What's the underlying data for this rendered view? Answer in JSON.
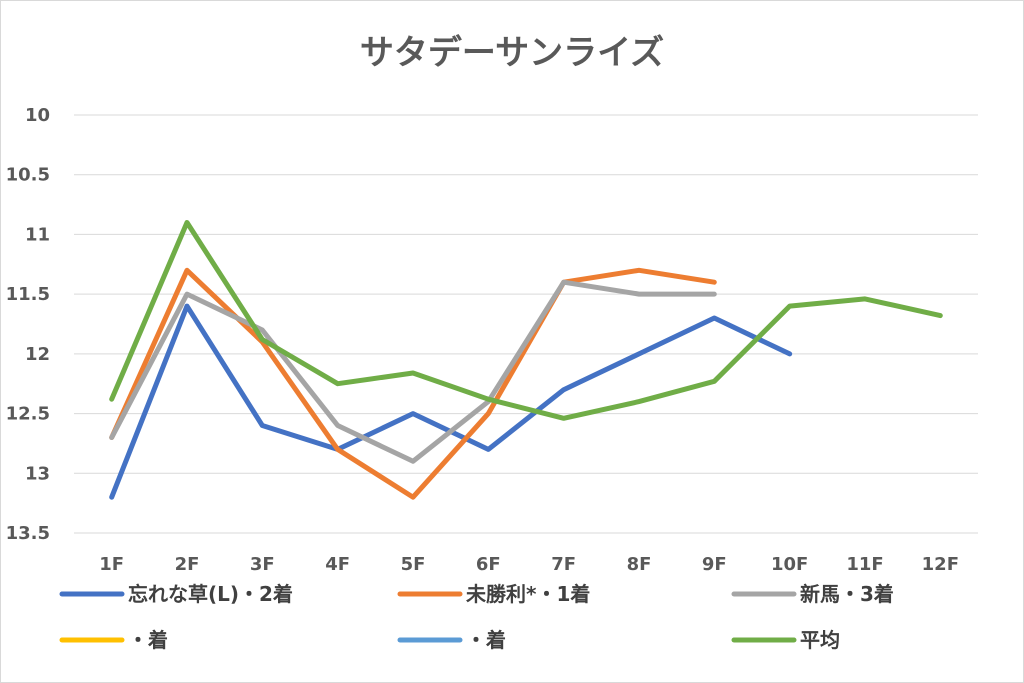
{
  "chart_data": {
    "type": "line",
    "title": "サタデーサンライズ",
    "categories": [
      "1F",
      "2F",
      "3F",
      "4F",
      "5F",
      "6F",
      "7F",
      "8F",
      "9F",
      "10F",
      "11F",
      "12F"
    ],
    "y_axis": {
      "reversed": true,
      "ylim": [
        10,
        13.5
      ],
      "ticks": [
        "10",
        "10.5",
        "11",
        "11.5",
        "12",
        "12.5",
        "13",
        "13.5"
      ]
    },
    "grid": true,
    "legend_position": "bottom",
    "series": [
      {
        "name": "忘れな草(L)・2着",
        "color": "#4472c4",
        "values": [
          13.2,
          11.6,
          12.6,
          12.8,
          12.5,
          12.8,
          12.3,
          12.0,
          11.7,
          12.0,
          null,
          null
        ]
      },
      {
        "name": "未勝利*・1着",
        "color": "#ed7d31",
        "values": [
          12.7,
          11.3,
          11.9,
          12.8,
          13.2,
          12.5,
          11.4,
          11.3,
          11.4,
          null,
          null,
          null
        ]
      },
      {
        "name": "新馬・3着",
        "color": "#a5a5a5",
        "values": [
          12.7,
          11.5,
          11.8,
          12.6,
          12.9,
          12.4,
          11.4,
          11.5,
          11.5,
          null,
          null,
          null
        ]
      },
      {
        "name": "・着",
        "color": "#ffc000",
        "values": [
          null,
          null,
          null,
          null,
          null,
          null,
          null,
          null,
          null,
          null,
          null,
          null
        ]
      },
      {
        "name": "・着",
        "color": "#5b9bd5",
        "values": [
          null,
          null,
          null,
          null,
          null,
          null,
          null,
          null,
          null,
          null,
          null,
          null
        ]
      },
      {
        "name": "平均",
        "color": "#70ad47",
        "values": [
          12.38,
          10.9,
          11.88,
          12.25,
          12.16,
          12.38,
          12.54,
          12.4,
          12.23,
          11.6,
          11.54,
          11.68
        ]
      }
    ]
  }
}
